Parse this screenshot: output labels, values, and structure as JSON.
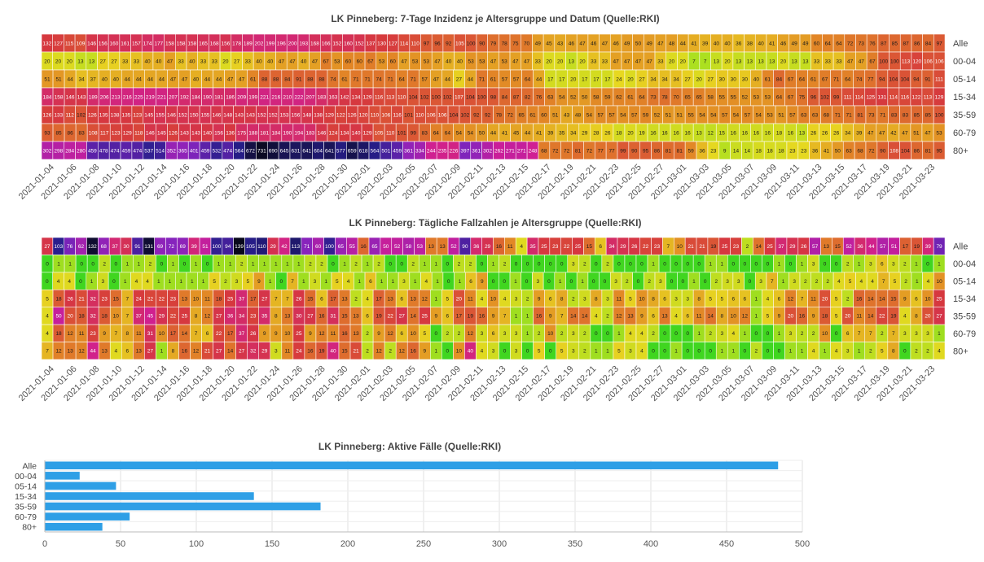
{
  "chart_data": [
    {
      "type": "heatmap",
      "title": "LK Pinneberg: 7-Tage Inzidenz je Altersgruppe und Datum (Quelle:RKI)",
      "rows": [
        "Alle",
        "00-04",
        "05-14",
        "15-34",
        "35-59",
        "60-79",
        "80+"
      ],
      "date_labels": [
        "2021-01-04",
        "2021-01-06",
        "2021-01-08",
        "2021-01-10",
        "2021-01-12",
        "2021-01-14",
        "2021-01-16",
        "2021-01-18",
        "2021-01-20",
        "2021-01-22",
        "2021-01-24",
        "2021-01-26",
        "2021-01-28",
        "2021-01-30",
        "2021-02-01",
        "2021-02-03",
        "2021-02-05",
        "2021-02-07",
        "2021-02-09",
        "2021-02-11",
        "2021-02-13",
        "2021-02-15",
        "2021-02-17",
        "2021-02-19",
        "2021-02-21",
        "2021-02-23",
        "2021-02-25",
        "2021-02-27",
        "2021-03-01",
        "2021-03-03",
        "2021-03-05",
        "2021-03-07",
        "2021-03-09",
        "2021-03-11",
        "2021-03-13",
        "2021-03-15",
        "2021-03-17",
        "2021-03-19",
        "2021-03-21",
        "2021-03-23"
      ],
      "values": [
        [
          132,
          127,
          115,
          109,
          146,
          156,
          160,
          161,
          157,
          174,
          177,
          158,
          158,
          158,
          165,
          168,
          156,
          178,
          189,
          202,
          199,
          196,
          200,
          193,
          168,
          166,
          152,
          160,
          152,
          137,
          130,
          127,
          114,
          110,
          97,
          96,
          92,
          105,
          100,
          90,
          79,
          78,
          75,
          70,
          49,
          45,
          43,
          46,
          47,
          46,
          47,
          46,
          49,
          50,
          49,
          47,
          48,
          44,
          41,
          39,
          40,
          40,
          36,
          38,
          40,
          41,
          46,
          49,
          49,
          60,
          64,
          64,
          72,
          73,
          76,
          87,
          85,
          87,
          86,
          84,
          97
        ],
        [
          20,
          20,
          20,
          13,
          13,
          27,
          27,
          33,
          33,
          40,
          40,
          47,
          33,
          40,
          33,
          33,
          20,
          27,
          33,
          40,
          40,
          47,
          47,
          40,
          47,
          67,
          53,
          60,
          60,
          67,
          53,
          60,
          47,
          53,
          53,
          47,
          40,
          40,
          53,
          53,
          47,
          53,
          47,
          47,
          33,
          20,
          20,
          13,
          20,
          33,
          33,
          47,
          47,
          47,
          47,
          33,
          20,
          20,
          7,
          7,
          13,
          20,
          13,
          13,
          13,
          13,
          20,
          13,
          13,
          33,
          33,
          33,
          47,
          47,
          67,
          100,
          100,
          113,
          120,
          106,
          106
        ],
        [
          51,
          51,
          44,
          34,
          37,
          40,
          40,
          44,
          44,
          44,
          44,
          47,
          47,
          40,
          44,
          44,
          47,
          47,
          61,
          88,
          88,
          84,
          91,
          88,
          88,
          74,
          61,
          71,
          71,
          74,
          71,
          64,
          71,
          57,
          47,
          44,
          27,
          44,
          71,
          61,
          57,
          57,
          64,
          44,
          17,
          17,
          20,
          17,
          17,
          17,
          24,
          20,
          27,
          34,
          34,
          34,
          27,
          20,
          27,
          30,
          30,
          30,
          40,
          61,
          84,
          67,
          64,
          61,
          67,
          71,
          64,
          74,
          77,
          94,
          104,
          104,
          94,
          91,
          111
        ],
        [
          184,
          158,
          146,
          143,
          189,
          206,
          213,
          216,
          225,
          219,
          221,
          207,
          192,
          184,
          190,
          181,
          186,
          209,
          199,
          221,
          216,
          210,
          222,
          207,
          183,
          163,
          142,
          134,
          129,
          116,
          113,
          110,
          104,
          102,
          100,
          102,
          107,
          104,
          100,
          98,
          84,
          87,
          82,
          76,
          63,
          54,
          52,
          50,
          58,
          59,
          62,
          61,
          64,
          73,
          78,
          70,
          65,
          65,
          58,
          55,
          55,
          52,
          53,
          53,
          64,
          67,
          75,
          96,
          102,
          99,
          111,
          114,
          125,
          131,
          114,
          116,
          122,
          113,
          129
        ],
        [
          126,
          133,
          112,
          102,
          126,
          135,
          138,
          135,
          123,
          145,
          155,
          146,
          152,
          150,
          155,
          146,
          148,
          143,
          143,
          152,
          152,
          153,
          156,
          148,
          138,
          129,
          122,
          126,
          120,
          110,
          106,
          116,
          101,
          110,
          106,
          106,
          104,
          102,
          92,
          92,
          78,
          72,
          65,
          61,
          60,
          51,
          43,
          48,
          54,
          57,
          57,
          54,
          57,
          59,
          52,
          51,
          51,
          55,
          54,
          54,
          57,
          54,
          57,
          54,
          53,
          51,
          57,
          63,
          63,
          68,
          71,
          71,
          81,
          73,
          71,
          83,
          83,
          85,
          85,
          100
        ],
        [
          93,
          85,
          86,
          83,
          108,
          117,
          123,
          129,
          118,
          146,
          145,
          126,
          143,
          143,
          140,
          156,
          136,
          175,
          188,
          181,
          184,
          190,
          194,
          183,
          146,
          124,
          134,
          140,
          129,
          105,
          110,
          101,
          99,
          83,
          64,
          64,
          54,
          54,
          50,
          44,
          41,
          45,
          44,
          41,
          39,
          35,
          34,
          29,
          28,
          26,
          18,
          20,
          19,
          16,
          16,
          16,
          16,
          13,
          12,
          15,
          16,
          16,
          16,
          16,
          18,
          16,
          13,
          26,
          26,
          26,
          34,
          39,
          47,
          47,
          42,
          47,
          51,
          47,
          53
        ],
        [
          302,
          298,
          284,
          280,
          459,
          478,
          474,
          459,
          474,
          537,
          514,
          352,
          365,
          401,
          459,
          532,
          474,
          564,
          672,
          731,
          690,
          645,
          631,
          641,
          604,
          641,
          577,
          659,
          618,
          564,
          501,
          459,
          361,
          334,
          244,
          235,
          226,
          397,
          361,
          302,
          262,
          271,
          271,
          248,
          68,
          72,
          72,
          81,
          72,
          77,
          77,
          99,
          90,
          95,
          86,
          81,
          81,
          59,
          36,
          23,
          9,
          14,
          14,
          18,
          18,
          18,
          23,
          23,
          36,
          41,
          50,
          63,
          68,
          72,
          90,
          108,
          104,
          86,
          81,
          95
        ]
      ]
    },
    {
      "type": "heatmap",
      "title": "LK Pinneberg: Tägliche Fallzahlen je Altersgruppe (Quelle:RKI)",
      "rows": [
        "Alle",
        "00-04",
        "05-14",
        "15-34",
        "35-59",
        "60-79",
        "80+"
      ],
      "date_labels": [
        "2021-01-04",
        "2021-01-06",
        "2021-01-08",
        "2021-01-10",
        "2021-01-12",
        "2021-01-14",
        "2021-01-16",
        "2021-01-18",
        "2021-01-20",
        "2021-01-22",
        "2021-01-24",
        "2021-01-26",
        "2021-01-28",
        "2021-01-30",
        "2021-02-01",
        "2021-02-03",
        "2021-02-05",
        "2021-02-07",
        "2021-02-09",
        "2021-02-11",
        "2021-02-13",
        "2021-02-15",
        "2021-02-17",
        "2021-02-19",
        "2021-02-21",
        "2021-02-23",
        "2021-02-25",
        "2021-02-27",
        "2021-03-01",
        "2021-03-03",
        "2021-03-05",
        "2021-03-07",
        "2021-03-09",
        "2021-03-11",
        "2021-03-13",
        "2021-03-15",
        "2021-03-17",
        "2021-03-19",
        "2021-03-21",
        "2021-03-23"
      ],
      "values": [
        [
          27,
          103,
          76,
          62,
          132,
          68,
          37,
          30,
          91,
          131,
          69,
          72,
          69,
          39,
          51,
          100,
          94,
          139,
          105,
          110,
          29,
          42,
          113,
          71,
          60,
          100,
          65,
          55,
          16,
          65,
          50,
          52,
          58,
          53,
          13,
          13,
          52,
          90,
          36,
          29,
          16,
          11,
          4,
          35,
          25,
          23,
          22,
          25,
          15,
          6,
          34,
          29,
          26,
          22,
          23,
          7,
          10,
          21,
          21,
          19,
          25,
          23,
          2,
          14,
          25,
          37,
          29,
          26,
          57,
          13,
          15,
          52,
          36,
          44,
          57,
          51,
          17,
          19,
          39,
          79
        ],
        [
          0,
          1,
          1,
          0,
          0,
          2,
          0,
          1,
          1,
          2,
          0,
          1,
          0,
          1,
          0,
          1,
          1,
          2,
          1,
          1,
          1,
          1,
          1,
          2,
          2,
          0,
          1,
          2,
          1,
          2,
          0,
          0,
          2,
          1,
          1,
          0,
          2,
          2,
          0,
          1,
          2,
          0,
          0,
          0,
          0,
          0,
          3,
          2,
          0,
          2,
          0,
          0,
          0,
          1,
          0,
          0,
          0,
          0,
          1,
          1,
          0,
          0,
          0,
          0,
          1,
          0,
          1,
          3,
          0,
          0,
          2,
          1,
          3,
          6,
          3,
          2,
          1,
          0,
          1
        ],
        [
          0,
          4,
          4,
          0,
          1,
          3,
          0,
          1,
          4,
          4,
          1,
          1,
          1,
          1,
          1,
          5,
          2,
          3,
          5,
          9,
          1,
          0,
          7,
          1,
          3,
          1,
          5,
          4,
          1,
          6,
          1,
          1,
          3,
          1,
          4,
          1,
          0,
          1,
          6,
          9,
          0,
          0,
          1,
          0,
          3,
          0,
          1,
          0,
          1,
          0,
          0,
          3,
          2,
          0,
          2,
          3,
          0,
          0,
          1,
          0,
          2,
          3,
          3,
          0,
          3,
          7,
          1,
          3,
          2,
          2,
          2,
          4,
          5,
          4,
          4,
          7,
          5,
          2,
          1,
          4,
          10
        ],
        [
          5,
          18,
          26,
          21,
          32,
          23,
          15,
          7,
          24,
          22,
          22,
          23,
          13,
          10,
          11,
          18,
          25,
          37,
          17,
          27,
          7,
          7,
          26,
          15,
          6,
          17,
          13,
          2,
          4,
          17,
          13,
          6,
          13,
          12,
          1,
          5,
          20,
          11,
          4,
          10,
          4,
          3,
          2,
          9,
          6,
          8,
          2,
          3,
          8,
          3,
          11,
          5,
          10,
          8,
          6,
          3,
          3,
          8,
          5,
          5,
          6,
          6,
          1,
          4,
          6,
          12,
          7,
          11,
          20,
          5,
          2,
          16,
          14,
          14,
          15,
          9,
          6,
          10,
          25
        ],
        [
          4,
          50,
          20,
          18,
          32,
          18,
          10,
          7,
          37,
          45,
          29,
          22,
          25,
          8,
          12,
          27,
          36,
          34,
          23,
          35,
          8,
          13,
          30,
          27,
          16,
          31,
          15,
          13,
          6,
          19,
          22,
          27,
          14,
          25,
          9,
          6,
          17,
          19,
          16,
          9,
          7,
          1,
          1,
          16,
          9,
          7,
          14,
          14,
          4,
          2,
          12,
          13,
          9,
          6,
          13,
          4,
          6,
          11,
          14,
          8,
          10,
          12,
          1,
          5,
          9,
          20,
          16,
          9,
          18,
          5,
          20,
          11,
          14,
          22,
          19,
          4,
          8,
          20,
          27
        ],
        [
          4,
          18,
          12,
          11,
          23,
          9,
          7,
          8,
          11,
          31,
          10,
          17,
          14,
          7,
          6,
          22,
          17,
          37,
          26,
          9,
          9,
          10,
          25,
          9,
          12,
          11,
          16,
          13,
          2,
          9,
          12,
          6,
          10,
          5,
          0,
          2,
          2,
          12,
          3,
          6,
          3,
          3,
          1,
          2,
          10,
          2,
          3,
          2,
          0,
          0,
          1,
          4,
          4,
          2,
          0,
          0,
          0,
          1,
          2,
          3,
          4,
          1,
          0,
          0,
          1,
          3,
          2,
          2,
          10,
          0,
          6,
          7,
          7,
          2,
          7,
          3,
          3,
          3,
          1
        ],
        [
          7,
          12,
          13,
          12,
          44,
          13,
          4,
          6,
          13,
          27,
          1,
          8,
          16,
          12,
          21,
          27,
          14,
          27,
          32,
          29,
          3,
          11,
          24,
          16,
          19,
          40,
          15,
          21,
          2,
          12,
          2,
          12,
          16,
          9,
          1,
          0,
          10,
          40,
          4,
          3,
          0,
          3,
          0,
          5,
          0,
          5,
          3,
          2,
          1,
          1,
          5,
          3,
          4,
          0,
          0,
          1,
          0,
          0,
          0,
          1,
          1,
          0,
          2,
          0,
          0,
          1,
          1,
          4,
          1,
          4,
          3,
          1,
          2,
          5,
          8,
          0,
          2,
          2,
          4
        ]
      ]
    },
    {
      "type": "bar",
      "orientation": "horizontal",
      "title": "LK Pinneberg: Aktive Fälle (Quelle:RKI)",
      "categories": [
        "Alle",
        "00-04",
        "05-14",
        "15-34",
        "35-59",
        "60-79",
        "80+"
      ],
      "values": [
        484,
        23,
        47,
        138,
        182,
        56,
        38
      ],
      "xlim": [
        0,
        500
      ],
      "xticks": [
        0,
        50,
        100,
        150,
        200,
        250,
        300,
        350,
        400,
        450,
        500
      ],
      "bar_color": "#2e9fe6",
      "grid": true
    }
  ]
}
